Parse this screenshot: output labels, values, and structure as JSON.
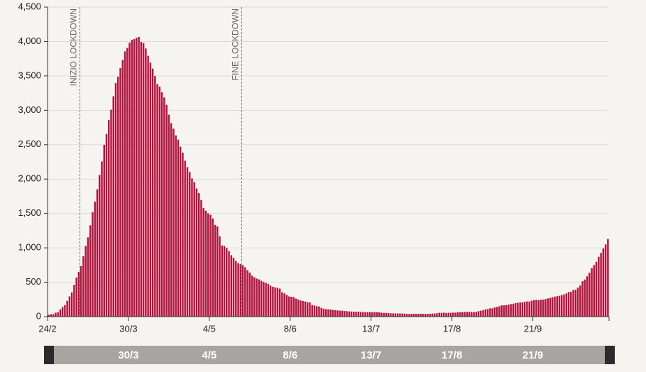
{
  "chart_data": {
    "type": "bar",
    "color": "#b8123e",
    "grid": true,
    "ylim": [
      0,
      4500
    ],
    "yticks": [
      0,
      500,
      {
        "value": 1000,
        "label": "1,000"
      },
      {
        "value": 1500,
        "label": "1,500"
      },
      {
        "value": 2000,
        "label": "2,000"
      },
      {
        "value": 2500,
        "label": "2,500"
      },
      {
        "value": 3000,
        "label": "3,000"
      },
      {
        "value": 3500,
        "label": "3,500"
      },
      {
        "value": 4000,
        "label": "4,000"
      },
      {
        "value": 4500,
        "label": "4,500"
      }
    ],
    "annotations": [
      {
        "text": "INIZIO LOCKDOWN",
        "index": 14
      },
      {
        "text": "FINE LOCKDOWN",
        "index": 84
      }
    ],
    "categories": [
      "24/2",
      null,
      null,
      null,
      null,
      null,
      null,
      null,
      null,
      null,
      null,
      null,
      null,
      null,
      null,
      null,
      null,
      null,
      null,
      null,
      null,
      null,
      null,
      null,
      null,
      null,
      null,
      null,
      null,
      null,
      null,
      null,
      null,
      null,
      null,
      "30/3",
      null,
      null,
      null,
      null,
      null,
      null,
      null,
      null,
      null,
      null,
      null,
      null,
      null,
      null,
      null,
      null,
      null,
      null,
      null,
      null,
      null,
      null,
      null,
      null,
      null,
      null,
      null,
      null,
      null,
      null,
      null,
      null,
      null,
      null,
      "4/5",
      null,
      null,
      null,
      null,
      null,
      null,
      null,
      null,
      null,
      null,
      null,
      null,
      null,
      null,
      null,
      null,
      null,
      null,
      null,
      null,
      null,
      null,
      null,
      null,
      null,
      null,
      null,
      null,
      null,
      null,
      null,
      null,
      null,
      null,
      "8/6",
      null,
      null,
      null,
      null,
      null,
      null,
      null,
      null,
      null,
      null,
      null,
      null,
      null,
      null,
      null,
      null,
      null,
      null,
      null,
      null,
      null,
      null,
      null,
      null,
      null,
      null,
      null,
      null,
      null,
      null,
      null,
      null,
      null,
      null,
      "13/7",
      null,
      null,
      null,
      null,
      null,
      null,
      null,
      null,
      null,
      null,
      null,
      null,
      null,
      null,
      null,
      null,
      null,
      null,
      null,
      null,
      null,
      null,
      null,
      null,
      null,
      null,
      null,
      null,
      null,
      null,
      null,
      null,
      null,
      null,
      "17/8",
      null,
      null,
      null,
      null,
      null,
      null,
      null,
      null,
      null,
      null,
      null,
      null,
      null,
      null,
      null,
      null,
      null,
      null,
      null,
      null,
      null,
      null,
      null,
      null,
      null,
      null,
      null,
      null,
      null,
      null,
      null,
      null,
      null,
      null,
      "21/9",
      null,
      null,
      null,
      null,
      null,
      null,
      null,
      null,
      null,
      null,
      null,
      null,
      null,
      null,
      null,
      null,
      null,
      null,
      null,
      null,
      null,
      null,
      null,
      null,
      null,
      null,
      null,
      null,
      null,
      null,
      null,
      null
    ],
    "values": [
      26,
      35,
      36,
      56,
      64,
      105,
      140,
      166,
      229,
      295,
      351,
      462,
      567,
      650,
      733,
      877,
      1028,
      1153,
      1328,
      1518,
      1672,
      1851,
      2060,
      2257,
      2498,
      2655,
      2857,
      3009,
      3204,
      3396,
      3489,
      3612,
      3732,
      3856,
      3906,
      3981,
      4023,
      4035,
      4053,
      4068,
      3994,
      3977,
      3898,
      3792,
      3693,
      3605,
      3497,
      3381,
      3343,
      3260,
      3186,
      3079,
      2936,
      2812,
      2733,
      2635,
      2573,
      2471,
      2384,
      2267,
      2173,
      2102,
      2009,
      1956,
      1863,
      1795,
      1694,
      1578,
      1539,
      1501,
      1479,
      1427,
      1333,
      1311,
      1168,
      1034,
      1027,
      999,
      952,
      893,
      855,
      808,
      775,
      762,
      749,
      716,
      676,
      640,
      595,
      572,
      553,
      541,
      521,
      505,
      489,
      475,
      450,
      435,
      424,
      419,
      408,
      353,
      338,
      316,
      293,
      287,
      283,
      263,
      249,
      236,
      227,
      220,
      209,
      207,
      168,
      161,
      152,
      148,
      127,
      115,
      108,
      107,
      103,
      97,
      94,
      90,
      87,
      87,
      82,
      79,
      76,
      74,
      72,
      71,
      71,
      69,
      67,
      67,
      64,
      67,
      64,
      65,
      65,
      62,
      57,
      54,
      54,
      53,
      49,
      48,
      47,
      46,
      46,
      46,
      44,
      40,
      38,
      41,
      41,
      40,
      42,
      41,
      41,
      40,
      41,
      42,
      44,
      46,
      49,
      56,
      55,
      58,
      53,
      56,
      55,
      58,
      58,
      63,
      64,
      66,
      68,
      69,
      69,
      66,
      65,
      69,
      79,
      86,
      94,
      107,
      109,
      121,
      120,
      133,
      142,
      150,
      164,
      164,
      168,
      175,
      182,
      187,
      197,
      201,
      207,
      208,
      215,
      222,
      220,
      232,
      239,
      244,
      239,
      246,
      247,
      254,
      264,
      271,
      280,
      291,
      297,
      303,
      314,
      323,
      337,
      358,
      362,
      387,
      390,
      420,
      452,
      514,
      539,
      586,
      638,
      705,
      750,
      797,
      870,
      926,
      992,
      1049,
      1128
    ]
  }
}
